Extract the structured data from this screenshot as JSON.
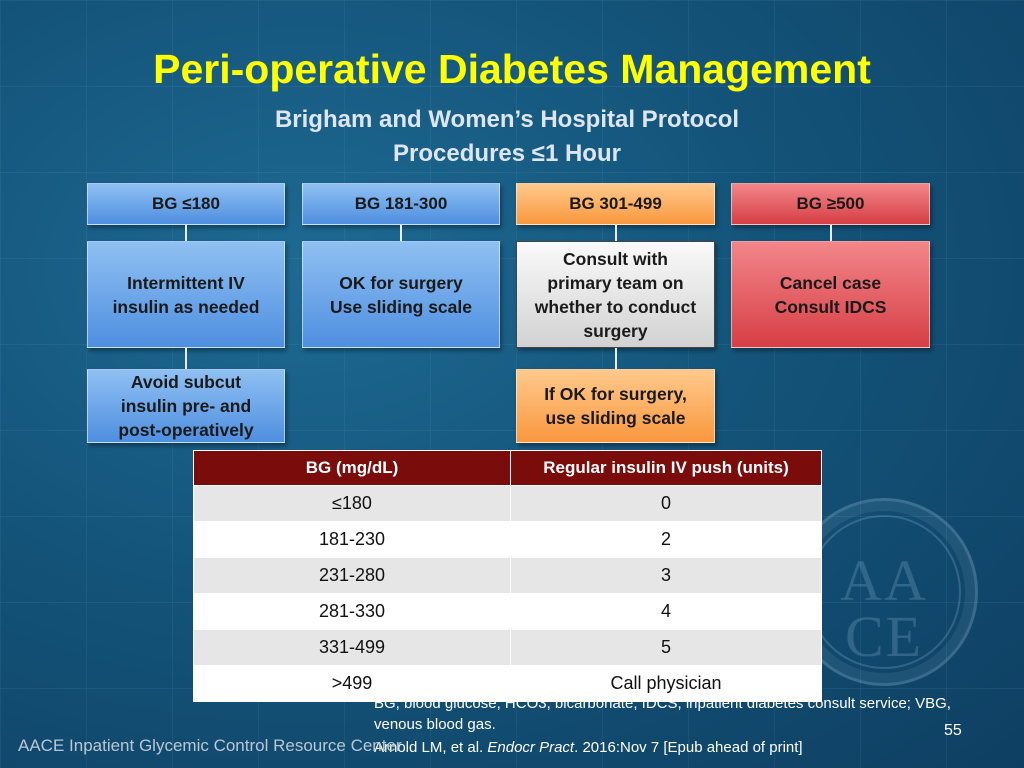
{
  "slide": {
    "title": "Peri-operative Diabetes Management",
    "subtitle_line1": "Brigham and Women’s Hospital Protocol",
    "subtitle_line2": "Procedures ≤1 Hour"
  },
  "flowchart": {
    "col1": {
      "header": "BG ≤180",
      "action": "Intermittent IV insulin as needed",
      "followup": "Avoid subcut insulin pre- and post-operatively",
      "color": "#4f8fe0"
    },
    "col2": {
      "header": "BG 181-300",
      "action": "OK for surgery Use sliding scale",
      "action_line1": "OK for surgery",
      "action_line2": "Use sliding scale",
      "color": "#4f8fe0"
    },
    "col3": {
      "header": "BG 301-499",
      "action": "Consult with primary team on whether to conduct surgery",
      "followup": "If OK for surgery, use sliding scale",
      "color": "#f9983e"
    },
    "col4": {
      "header": "BG ≥500",
      "action_line1": "Cancel case",
      "action_line2": "Consult IDCS",
      "color": "#d63f45"
    }
  },
  "table": {
    "headers": [
      "BG (mg/dL)",
      "Regular insulin IV push (units)"
    ],
    "header_color": "#7a0c0c",
    "rows": [
      [
        "≤180",
        "0"
      ],
      [
        "181-230",
        "2"
      ],
      [
        "231-280",
        "3"
      ],
      [
        "281-330",
        "4"
      ],
      [
        "331-499",
        "5"
      ],
      [
        ">499",
        "Call physician"
      ]
    ]
  },
  "footnotes": {
    "abbreviations": "BG, blood glucose; HCO3, bicarbonate; IDCS, inpatient diabetes consult service; VBG, venous blood gas.",
    "ref_authors": "Arnold LM, et al. ",
    "ref_journal": "Endocr Pract",
    "ref_rest": ". 2016:Nov 7 [Epub ahead of print]"
  },
  "footer": {
    "org": "AACE Inpatient Glycemic Control Resource Center",
    "page_number": "55"
  },
  "watermark": {
    "seal_text": "AACE",
    "seal_text_top": "AA",
    "seal_text_bottom": "CE"
  }
}
